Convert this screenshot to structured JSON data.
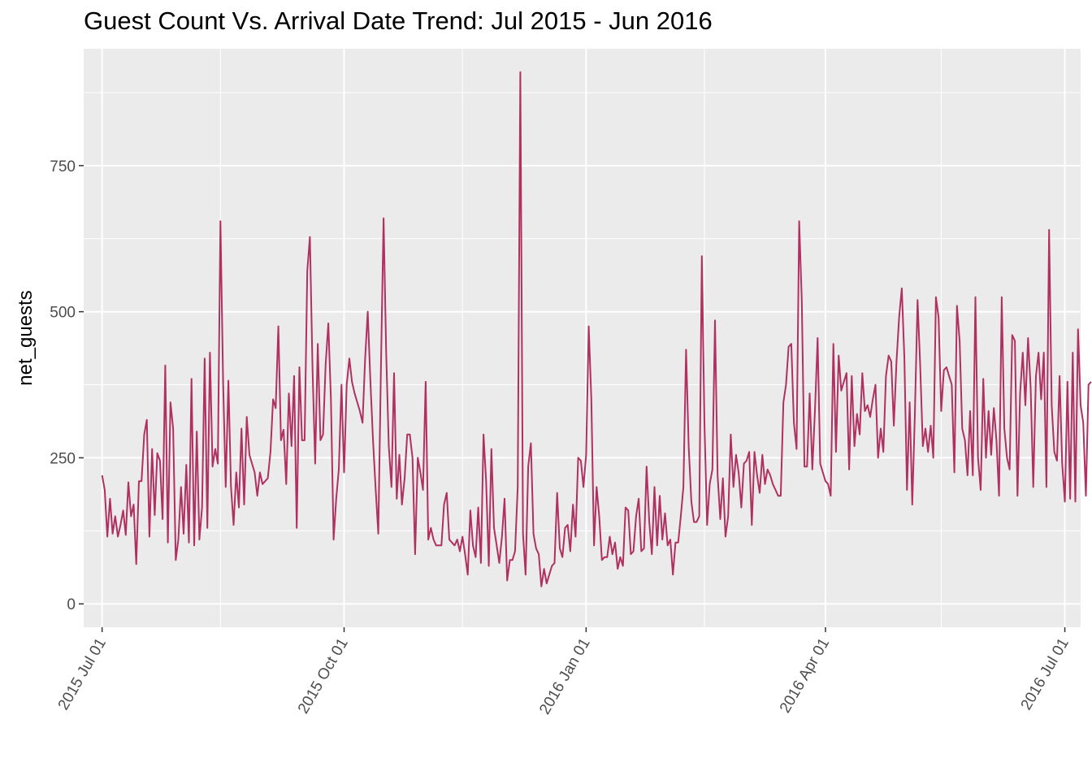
{
  "chart_data": {
    "type": "line",
    "title": "Guest Count Vs. Arrival Date Trend: Jul 2015 - Jun 2016",
    "xlabel": "",
    "ylabel": "net_guests",
    "x_range": [
      "2015-06-24",
      "2016-07-07"
    ],
    "ylim": [
      -40,
      950
    ],
    "y_ticks": [
      0,
      250,
      500,
      750
    ],
    "x_ticks": [
      {
        "date": "2015-07-01",
        "label": "2015 Jul 01"
      },
      {
        "date": "2015-10-01",
        "label": "2015 Oct 01"
      },
      {
        "date": "2016-01-01",
        "label": "2016 Jan 01"
      },
      {
        "date": "2016-04-01",
        "label": "2016 Apr 01"
      },
      {
        "date": "2016-07-01",
        "label": "2016 Jul 01"
      }
    ],
    "x_minor_ticks": [
      "2015-08-15",
      "2015-11-15",
      "2016-02-15",
      "2016-05-15"
    ],
    "grid": true,
    "series": [
      {
        "name": "",
        "color": "#B03060",
        "start_date": "2015-07-01",
        "values": [
          220,
          195,
          115,
          180,
          120,
          150,
          115,
          135,
          160,
          118,
          208,
          150,
          170,
          68,
          210,
          210,
          290,
          315,
          115,
          265,
          152,
          258,
          245,
          145,
          408,
          105,
          345,
          300,
          75,
          110,
          200,
          120,
          238,
          105,
          385,
          100,
          295,
          110,
          165,
          420,
          130,
          430,
          235,
          265,
          240,
          655,
          380,
          200,
          382,
          200,
          135,
          225,
          165,
          300,
          170,
          320,
          255,
          240,
          225,
          185,
          225,
          205,
          210,
          215,
          260,
          350,
          335,
          475,
          280,
          298,
          205,
          360,
          270,
          390,
          130,
          405,
          280,
          280,
          570,
          628,
          400,
          240,
          445,
          280,
          290,
          410,
          480,
          350,
          110,
          180,
          230,
          375,
          225,
          375,
          420,
          380,
          360,
          345,
          330,
          310,
          420,
          500,
          380,
          280,
          195,
          120,
          400,
          660,
          430,
          270,
          200,
          395,
          180,
          255,
          170,
          215,
          290,
          290,
          250,
          85,
          250,
          225,
          195,
          380,
          110,
          130,
          110,
          100,
          100,
          100,
          170,
          190,
          110,
          105,
          100,
          110,
          90,
          115,
          85,
          50,
          160,
          100,
          80,
          165,
          70,
          290,
          210,
          65,
          265,
          130,
          100,
          70,
          115,
          180,
          40,
          75,
          75,
          90,
          200,
          910,
          120,
          50,
          235,
          275,
          120,
          95,
          85,
          30,
          60,
          35,
          50,
          65,
          70,
          190,
          95,
          80,
          130,
          135,
          90,
          170,
          115,
          250,
          245,
          200,
          255,
          475,
          350,
          100,
          200,
          150,
          75,
          80,
          80,
          115,
          85,
          105,
          60,
          80,
          65,
          165,
          160,
          85,
          90,
          150,
          180,
          90,
          95,
          235,
          140,
          85,
          200,
          100,
          185,
          110,
          155,
          100,
          110,
          50,
          105,
          105,
          150,
          200,
          435,
          270,
          175,
          140,
          140,
          150,
          595,
          310,
          135,
          205,
          230,
          485,
          220,
          145,
          215,
          115,
          150,
          290,
          200,
          255,
          225,
          165,
          240,
          245,
          260,
          135,
          260,
          220,
          190,
          255,
          205,
          230,
          220,
          205,
          195,
          185,
          185,
          345,
          375,
          440,
          445,
          310,
          265,
          655,
          520,
          235,
          235,
          360,
          230,
          330,
          455,
          240,
          225,
          210,
          205,
          185,
          445,
          260,
          425,
          365,
          380,
          395,
          230,
          390,
          270,
          325,
          290,
          395,
          330,
          340,
          320,
          350,
          375,
          250,
          300,
          260,
          390,
          425,
          415,
          305,
          415,
          490,
          540,
          420,
          195,
          345,
          170,
          325,
          520,
          410,
          270,
          300,
          260,
          305,
          250,
          525,
          490,
          330,
          400,
          405,
          390,
          375,
          225,
          510,
          450,
          300,
          280,
          220,
          330,
          220,
          525,
          250,
          195,
          385,
          250,
          330,
          255,
          335,
          280,
          185,
          525,
          300,
          250,
          230,
          460,
          450,
          185,
          360,
          430,
          340,
          455,
          370,
          200,
          390,
          430,
          350,
          430,
          200,
          640,
          340,
          260,
          245,
          390,
          240,
          175,
          380,
          180,
          430,
          175,
          470,
          340,
          310,
          185,
          375,
          380
        ]
      }
    ]
  }
}
